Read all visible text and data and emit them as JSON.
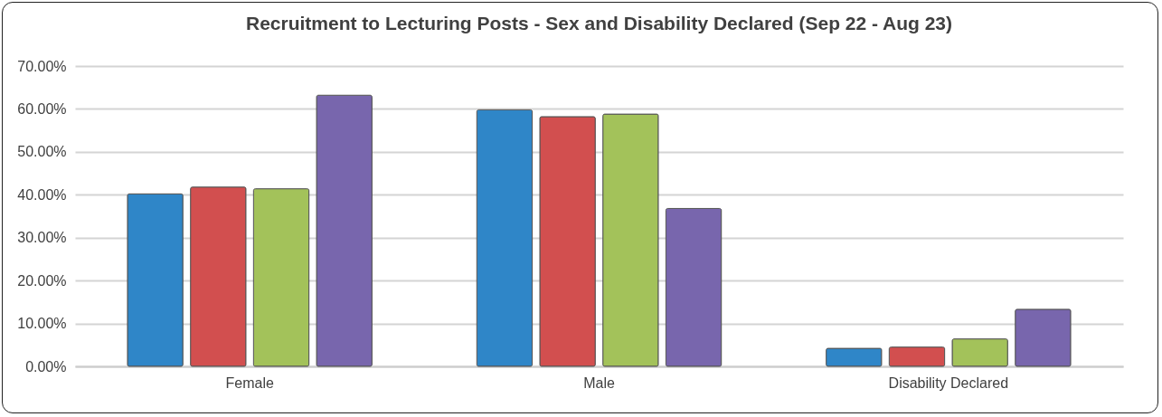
{
  "chart_data": {
    "type": "bar",
    "title": "Recruitment to Lecturing Posts - Sex and Disability Declared (Sep 22 - Aug 23)",
    "categories": [
      "Female",
      "Male",
      "Disability Declared"
    ],
    "series": [
      {
        "color": "#2f86c8",
        "values": [
          40.2,
          59.8,
          4.2
        ]
      },
      {
        "color": "#d24f4f",
        "values": [
          41.8,
          58.2,
          4.5
        ]
      },
      {
        "color": "#a3c25a",
        "values": [
          41.4,
          58.8,
          6.4
        ]
      },
      {
        "color": "#7866ad",
        "values": [
          63.2,
          36.8,
          13.3
        ]
      }
    ],
    "ylim": [
      0,
      70
    ],
    "yticks": [
      {
        "value": 0,
        "label": "0.00%"
      },
      {
        "value": 10,
        "label": "10.00%"
      },
      {
        "value": 20,
        "label": "20.00%"
      },
      {
        "value": 30,
        "label": "30.00%"
      },
      {
        "value": 40,
        "label": "40.00%"
      },
      {
        "value": 50,
        "label": "50.00%"
      },
      {
        "value": 60,
        "label": "60.00%"
      },
      {
        "value": 70,
        "label": "70.00%"
      }
    ],
    "grid": "y"
  }
}
